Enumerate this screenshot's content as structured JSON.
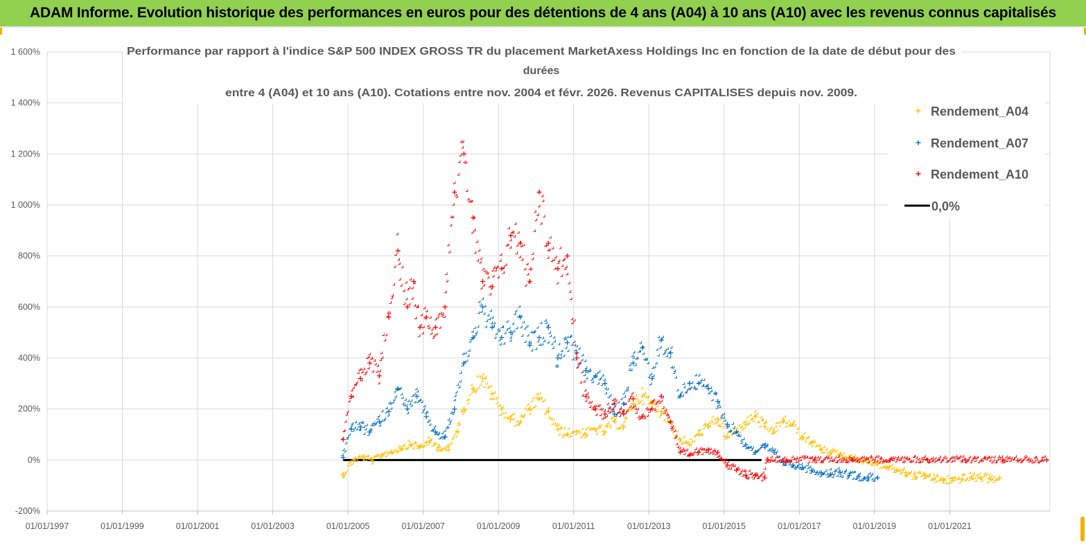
{
  "banner": {
    "title": "ADAM Informe. Evolution historique des performances en euros pour des détentions de 4 ans (A04) à 10 ans (A10) avec les revenus connus capitalisés"
  },
  "chart_data": {
    "type": "scatter",
    "title_lines": [
      "Performance par rapport à l'indice S&P 500 INDEX GROSS TR  du placement MarketAxess Holdings Inc en fonction de la date de début pour des",
      "durées",
      "entre 4 (A04) et 10 ans (A10). Cotations entre nov. 2004 et févr. 2026. Revenus CAPITALISES depuis nov. 2009."
    ],
    "xlabel": "",
    "ylabel": "",
    "x_tick_labels": [
      "01/01/1997",
      "01/01/1999",
      "01/01/2001",
      "01/01/2003",
      "01/01/2005",
      "01/01/2007",
      "01/01/2009",
      "01/01/2011",
      "01/01/2013",
      "01/01/2015",
      "01/01/2017",
      "01/01/2019",
      "01/01/2021"
    ],
    "xlim": [
      "1997-01-01",
      "2023-09-01"
    ],
    "y_tick_labels": [
      "1 600%",
      "1 400%",
      "1 200%",
      "1 000%",
      "800%",
      "600%",
      "400%",
      "200%",
      "0%",
      "-200%"
    ],
    "ylim": [
      -200,
      1600
    ],
    "grid": true,
    "legend_position": "top-right",
    "colors": {
      "A04": "#ffc000",
      "A07": "#0070c0",
      "A10": "#ff0000",
      "zero": "#000000",
      "grid": "#d9d9d9",
      "banner": "#92d050"
    },
    "series": [
      {
        "name": "Rendement_A04",
        "marker": "plus",
        "x": [
          "2004-11-15",
          "2005-03-01",
          "2005-06-01",
          "2005-09-01",
          "2005-12-01",
          "2006-03-01",
          "2006-06-01",
          "2006-09-01",
          "2006-12-01",
          "2007-03-01",
          "2007-06-01",
          "2007-09-01",
          "2007-12-01",
          "2008-02-01",
          "2008-05-01",
          "2008-08-01",
          "2008-11-01",
          "2009-02-01",
          "2009-05-01",
          "2009-08-01",
          "2009-11-01",
          "2010-02-01",
          "2010-05-01",
          "2010-08-01",
          "2010-11-01",
          "2011-02-01",
          "2011-05-01",
          "2011-08-01",
          "2011-11-01",
          "2012-02-01",
          "2012-05-01",
          "2012-08-01",
          "2012-11-01",
          "2013-02-01",
          "2013-05-01",
          "2013-08-01",
          "2013-11-01",
          "2014-02-01",
          "2014-05-01",
          "2014-08-01",
          "2014-11-01",
          "2015-02-01",
          "2015-05-01",
          "2015-08-01",
          "2015-11-01",
          "2016-02-01",
          "2016-05-01",
          "2016-08-01",
          "2016-11-01",
          "2017-02-01",
          "2017-05-01",
          "2017-08-01",
          "2017-11-01",
          "2018-02-01",
          "2018-05-01",
          "2018-08-01",
          "2018-11-01",
          "2019-02-01",
          "2019-05-01",
          "2019-08-01",
          "2019-11-01",
          "2020-02-01",
          "2020-05-01",
          "2020-08-01",
          "2020-11-01",
          "2021-02-01",
          "2021-05-01",
          "2021-08-01",
          "2021-11-01",
          "2022-02-01",
          "2022-05-01"
        ],
        "y": [
          -60,
          0,
          10,
          -5,
          20,
          30,
          45,
          60,
          50,
          70,
          50,
          40,
          110,
          200,
          280,
          320,
          260,
          200,
          160,
          150,
          200,
          240,
          190,
          120,
          100,
          110,
          100,
          120,
          110,
          150,
          130,
          220,
          250,
          220,
          190,
          150,
          80,
          60,
          100,
          130,
          160,
          90,
          110,
          140,
          170,
          130,
          110,
          150,
          140,
          90,
          70,
          40,
          30,
          20,
          10,
          0,
          -10,
          -15,
          -30,
          -40,
          -50,
          -65,
          -60,
          -75,
          -80,
          -80,
          -75,
          -70,
          -70,
          -75,
          -70
        ]
      },
      {
        "name": "Rendement_A07",
        "marker": "plus",
        "x": [
          "2004-11-15",
          "2005-02-01",
          "2005-05-01",
          "2005-08-01",
          "2005-11-01",
          "2006-02-01",
          "2006-05-01",
          "2006-08-01",
          "2006-11-01",
          "2007-02-01",
          "2007-05-01",
          "2007-08-01",
          "2007-11-01",
          "2008-02-01",
          "2008-05-01",
          "2008-08-01",
          "2008-11-01",
          "2009-02-01",
          "2009-05-01",
          "2009-08-01",
          "2009-11-01",
          "2010-02-01",
          "2010-05-01",
          "2010-08-01",
          "2010-11-01",
          "2011-02-01",
          "2011-05-01",
          "2011-08-01",
          "2011-11-01",
          "2012-02-01",
          "2012-05-01",
          "2012-08-01",
          "2012-11-01",
          "2013-02-01",
          "2013-05-01",
          "2013-08-01",
          "2013-11-01",
          "2014-02-01",
          "2014-05-01",
          "2014-08-01",
          "2014-11-01",
          "2015-02-01",
          "2015-05-01",
          "2015-08-01",
          "2015-11-01",
          "2016-02-01",
          "2016-05-01",
          "2016-08-01",
          "2016-11-01",
          "2017-02-01",
          "2017-05-01",
          "2017-08-01",
          "2017-11-01",
          "2018-02-01",
          "2018-05-01",
          "2018-08-01",
          "2018-11-01",
          "2019-02-01"
        ],
        "y": [
          10,
          120,
          130,
          110,
          150,
          190,
          280,
          200,
          250,
          170,
          110,
          90,
          200,
          380,
          480,
          600,
          520,
          480,
          500,
          560,
          450,
          480,
          520,
          400,
          460,
          420,
          350,
          330,
          300,
          180,
          220,
          380,
          440,
          320,
          470,
          420,
          250,
          300,
          300,
          280,
          230,
          140,
          110,
          60,
          30,
          50,
          30,
          -10,
          -20,
          -30,
          -40,
          -50,
          -55,
          -50,
          -60,
          -65,
          -70,
          -70
        ]
      },
      {
        "name": "Rendement_A10",
        "marker": "plus",
        "x": [
          "2004-11-15",
          "2005-02-01",
          "2005-05-01",
          "2005-08-01",
          "2005-11-01",
          "2006-02-01",
          "2006-05-01",
          "2006-08-01",
          "2006-10-01",
          "2006-12-01",
          "2007-02-01",
          "2007-05-01",
          "2007-08-01",
          "2007-11-01",
          "2008-02-01",
          "2008-05-01",
          "2008-08-01",
          "2008-11-01",
          "2009-02-01",
          "2009-05-01",
          "2009-08-01",
          "2009-11-01",
          "2010-02-01",
          "2010-05-01",
          "2010-08-01",
          "2010-11-01",
          "2011-02-01",
          "2011-05-01",
          "2011-08-01",
          "2011-11-01",
          "2012-02-01",
          "2012-05-01",
          "2012-08-01",
          "2012-11-01",
          "2013-02-01",
          "2013-05-01",
          "2013-08-01",
          "2013-11-01",
          "2014-02-01",
          "2014-05-01",
          "2014-08-01",
          "2014-11-01",
          "2015-02-01",
          "2015-05-01",
          "2015-08-01",
          "2015-11-01",
          "2016-02-01",
          "2016-03-01",
          "2016-09-01",
          "2017-06-01",
          "2018-06-01",
          "2019-06-01",
          "2020-06-01",
          "2021-06-01",
          "2022-06-01",
          "2023-08-01"
        ],
        "y": [
          80,
          250,
          320,
          380,
          330,
          560,
          820,
          600,
          700,
          520,
          560,
          520,
          600,
          1050,
          1200,
          950,
          700,
          680,
          750,
          880,
          850,
          700,
          1050,
          850,
          750,
          800,
          400,
          250,
          200,
          180,
          220,
          180,
          240,
          170,
          200,
          250,
          150,
          30,
          20,
          30,
          40,
          30,
          -20,
          -40,
          -60,
          -60,
          -70,
          0,
          0,
          0,
          0,
          0,
          0,
          0,
          0,
          0
        ]
      },
      {
        "name": "0,0%",
        "type": "line",
        "x": [
          "2004-11-15",
          "2015-12-31"
        ],
        "y": [
          0,
          0
        ]
      }
    ]
  }
}
